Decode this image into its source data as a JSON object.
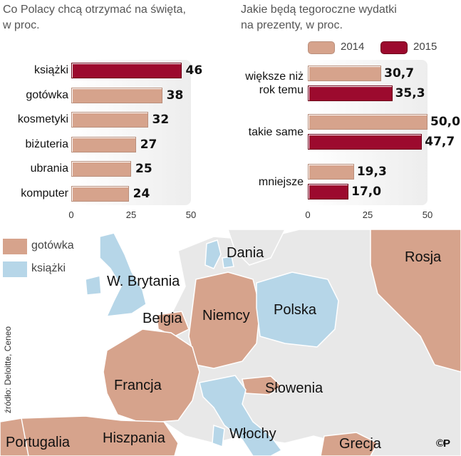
{
  "colors": {
    "gotowka": "#d6a38c",
    "ksiazki": "#b6d6e8",
    "y2014": "#d6a38c",
    "y2015": "#9c0a2e",
    "land_other": "#e8e8e8",
    "sea": "#ffffff"
  },
  "chart_data": [
    {
      "type": "bar",
      "orientation": "horizontal",
      "title": "Co Polacy chcą otrzymać na święta, w proc.",
      "categories": [
        "książki",
        "gotówka",
        "kosmetyki",
        "biżuteria",
        "ubrania",
        "komputer"
      ],
      "values": [
        46,
        38,
        32,
        27,
        25,
        24
      ],
      "highlight": "książki",
      "xlim": [
        0,
        50
      ],
      "xticks": [
        0,
        25,
        50
      ]
    },
    {
      "type": "bar",
      "orientation": "horizontal",
      "title": "Jakie będą tegoroczne wydatki na prezenty, w proc.",
      "categories": [
        "większe niż rok temu",
        "takie same",
        "mniejsze"
      ],
      "series": [
        {
          "name": "2014",
          "values": [
            30.7,
            50.0,
            19.3
          ]
        },
        {
          "name": "2015",
          "values": [
            35.3,
            47.7,
            17.0
          ]
        }
      ],
      "xlim": [
        0,
        50
      ],
      "xticks": [
        0,
        25,
        50
      ],
      "legend": "top"
    }
  ],
  "chart1": {
    "title_line1": "Co Polacy chcą otrzymać na święta,",
    "title_line2": "w proc."
  },
  "chart2": {
    "title_line1": "Jakie będą tegoroczne wydatki",
    "title_line2": "na prezenty, w proc.",
    "cat_labels": [
      [
        "większe niż",
        "rok temu"
      ],
      [
        "takie same"
      ],
      [
        "mniejsze"
      ]
    ],
    "value_labels_2014": [
      "30,7",
      "50,0",
      "19,3"
    ],
    "value_labels_2015": [
      "35,3",
      "47,7",
      "17,0"
    ]
  },
  "map": {
    "legend": [
      {
        "label": "gotówka",
        "key": "gotowka"
      },
      {
        "label": "książki",
        "key": "ksiazki"
      }
    ],
    "countries": {
      "rosja": {
        "name": "Rosja",
        "gift": "gotówka"
      },
      "dania": {
        "name": "Dania",
        "gift": "książki"
      },
      "wielka_brytania": {
        "name": "W. Brytania",
        "gift": "książki"
      },
      "belgia": {
        "name": "Belgia",
        "gift": "gotówka"
      },
      "niemcy": {
        "name": "Niemcy",
        "gift": "gotówka"
      },
      "polska": {
        "name": "Polska",
        "gift": "książki"
      },
      "francja": {
        "name": "Francja",
        "gift": "gotówka"
      },
      "slowenia": {
        "name": "Słowenia",
        "gift": "gotówka"
      },
      "portugalia": {
        "name": "Portugalia",
        "gift": "gotówka"
      },
      "hiszpania": {
        "name": "Hiszpania",
        "gift": "gotówka"
      },
      "wlochy": {
        "name": "Włochy",
        "gift": "książki"
      },
      "grecja": {
        "name": "Grecja",
        "gift": "gotówka"
      }
    },
    "source": "źródło: Deloitte, Ceneo",
    "copyright": "©P"
  }
}
